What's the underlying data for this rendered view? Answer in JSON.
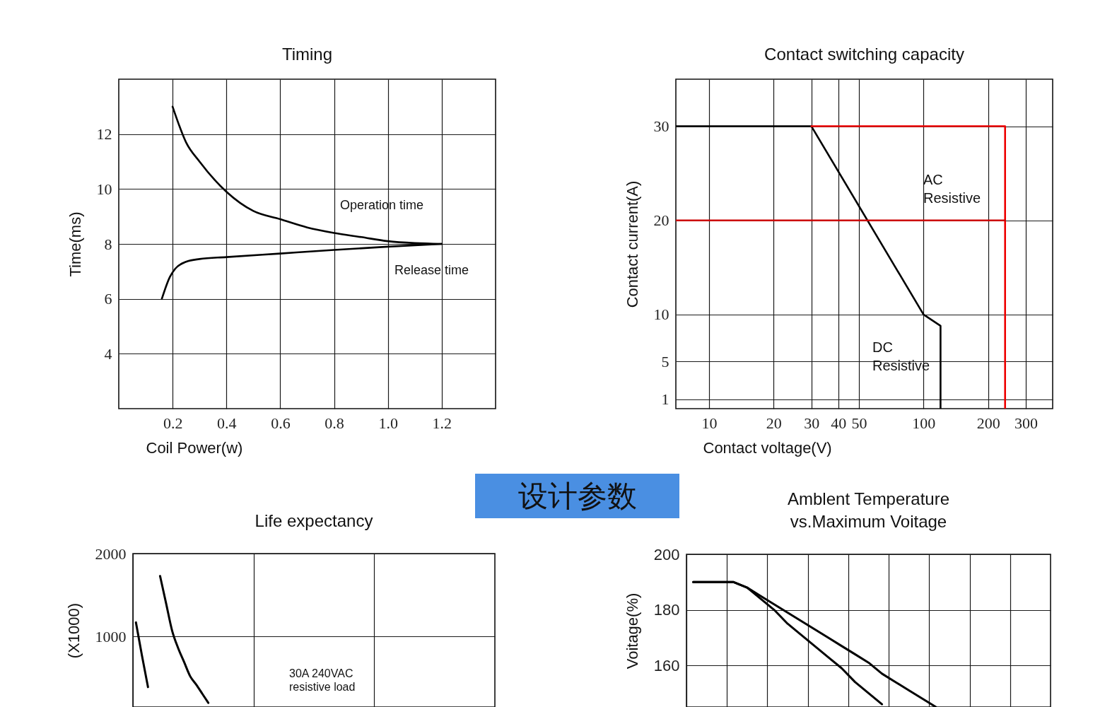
{
  "chart_data": [
    {
      "type": "line",
      "title": "Timing",
      "xlabel": "Coil Power(w)",
      "ylabel": "Time(ms)",
      "xlim": [
        0,
        1.4
      ],
      "ylim": [
        2,
        14
      ],
      "xticks": [
        0.2,
        0.4,
        0.6,
        0.8,
        {
          "value": 1,
          "label": "1.0"
        },
        1.2
      ],
      "yticks": [
        4,
        6,
        8,
        10,
        12
      ],
      "grid": true,
      "series": [
        {
          "name": "Operation time",
          "color": "#000000",
          "x": [
            0.2,
            0.25,
            0.3,
            0.4,
            0.5,
            0.6,
            0.7,
            0.8,
            0.9,
            1.0,
            1.1,
            1.2
          ],
          "values": [
            13,
            11.7,
            11.0,
            9.9,
            9.2,
            8.9,
            8.6,
            8.4,
            8.25,
            8.1,
            8.03,
            8
          ]
        },
        {
          "name": "Release time",
          "color": "#000000",
          "x": [
            0.16,
            0.19,
            0.21,
            0.25,
            0.3,
            0.4,
            0.6,
            0.8,
            1.0,
            1.2
          ],
          "values": [
            6,
            6.8,
            7.1,
            7.35,
            7.45,
            7.52,
            7.65,
            7.78,
            7.9,
            8
          ]
        }
      ]
    },
    {
      "type": "line",
      "title": "Contact switching capacity",
      "xlabel": "Contact voltage(V)",
      "ylabel": "Contact current(A)",
      "log": "x",
      "xlim": [
        7,
        400
      ],
      "ylim": [
        0,
        35
      ],
      "xticks": [
        10,
        20,
        30,
        40,
        50,
        100,
        200,
        300
      ],
      "yticks": [
        1,
        5,
        10,
        20,
        30
      ],
      "grid": true,
      "series": [
        {
          "name": "DC\nResistive",
          "color": "#000000",
          "x": [
            7,
            30,
            100,
            120,
            120
          ],
          "values": [
            30,
            30,
            10,
            8.8,
            0
          ]
        },
        {
          "name": "AC\nResistive",
          "color": "#ee0000",
          "x": [
            30,
            240,
            240
          ],
          "values": [
            30,
            30,
            0
          ]
        },
        {
          "color": "#cc0000",
          "x": [
            7,
            240
          ],
          "values": [
            20,
            20
          ]
        }
      ]
    },
    {
      "type": "other",
      "title": "设计参数",
      "color": "#4a8fe2"
    },
    {
      "type": "line",
      "title": "Life expectancy",
      "ylabel": "(X1000)",
      "ylim": [
        150,
        2000
      ],
      "yticks": [
        1000,
        2000
      ],
      "grid": true,
      "tick_labels": "y",
      "annotations": [
        "30A 240VAC\nresistive load"
      ],
      "categories": [
        null,
        null,
        null,
        null,
        null,
        null,
        null,
        null,
        null,
        null,
        null,
        null,
        null,
        null,
        null,
        null,
        null,
        null,
        null,
        null,
        null,
        null,
        null,
        null,
        null,
        null,
        null,
        null,
        null,
        null,
        null,
        null,
        null,
        null,
        null,
        null,
        null,
        null,
        null,
        null,
        null,
        null,
        null,
        null,
        null,
        null,
        null,
        null,
        null,
        null,
        null,
        null,
        null,
        null,
        null,
        null,
        null,
        null,
        null,
        null
      ],
      "series": [
        {
          "color": "#000000",
          "values": [
            1170,
            770,
            390,
            null,
            null,
            null,
            null,
            null,
            null,
            null,
            null,
            null,
            null,
            null,
            null,
            null,
            null,
            null,
            null,
            null,
            null,
            null,
            null,
            null,
            null,
            null,
            null,
            null,
            null,
            null,
            null,
            null,
            null,
            null,
            null,
            null,
            null,
            null,
            null,
            null,
            null,
            null,
            null,
            null,
            null,
            null,
            null,
            null,
            null,
            null,
            null,
            null,
            null,
            null,
            null,
            null,
            null,
            null,
            null,
            null
          ]
        },
        {
          "color": "#000000",
          "values": [
            null,
            null,
            null,
            null,
            1730,
            1400,
            1070,
            860,
            690,
            520,
            420,
            310,
            200,
            null,
            null,
            null,
            null,
            null,
            null,
            null,
            null,
            null,
            null,
            null,
            null,
            null,
            null,
            null,
            null,
            null,
            null,
            null,
            null,
            null,
            null,
            null,
            null,
            null,
            null,
            null,
            null,
            null,
            null,
            null,
            null,
            null,
            null,
            null,
            null,
            null,
            null,
            null,
            null,
            null,
            null,
            null,
            null,
            null,
            null,
            null
          ]
        }
      ]
    },
    {
      "type": "line",
      "title": "Amblent Temperature\nvs.Maximum Voitage",
      "ylabel": "Voitage(%)",
      "ylim": [
        145,
        200
      ],
      "yticks": [
        160,
        180,
        200
      ],
      "grid": true,
      "tick_labels": "y",
      "categories": [
        null,
        null,
        null,
        null,
        null,
        null,
        null,
        null,
        null,
        null,
        null,
        null,
        null,
        null,
        null,
        null,
        null,
        null,
        null,
        null,
        null,
        null,
        null,
        null,
        null,
        null,
        null
      ],
      "series": [
        {
          "color": "#000000",
          "values": [
            190,
            190,
            190,
            190,
            188,
            184,
            180,
            175,
            171,
            167,
            163,
            159,
            154,
            150,
            146,
            null,
            null,
            null,
            null,
            null,
            null,
            null,
            null,
            null,
            null,
            null,
            null
          ]
        },
        {
          "color": "#000000",
          "values": [
            190,
            190,
            190,
            190,
            188,
            185,
            182,
            179,
            176,
            173,
            170,
            167,
            164,
            161,
            157,
            154,
            151,
            148,
            145,
            null,
            null,
            null,
            null,
            null,
            null,
            null,
            null
          ]
        }
      ]
    }
  ]
}
